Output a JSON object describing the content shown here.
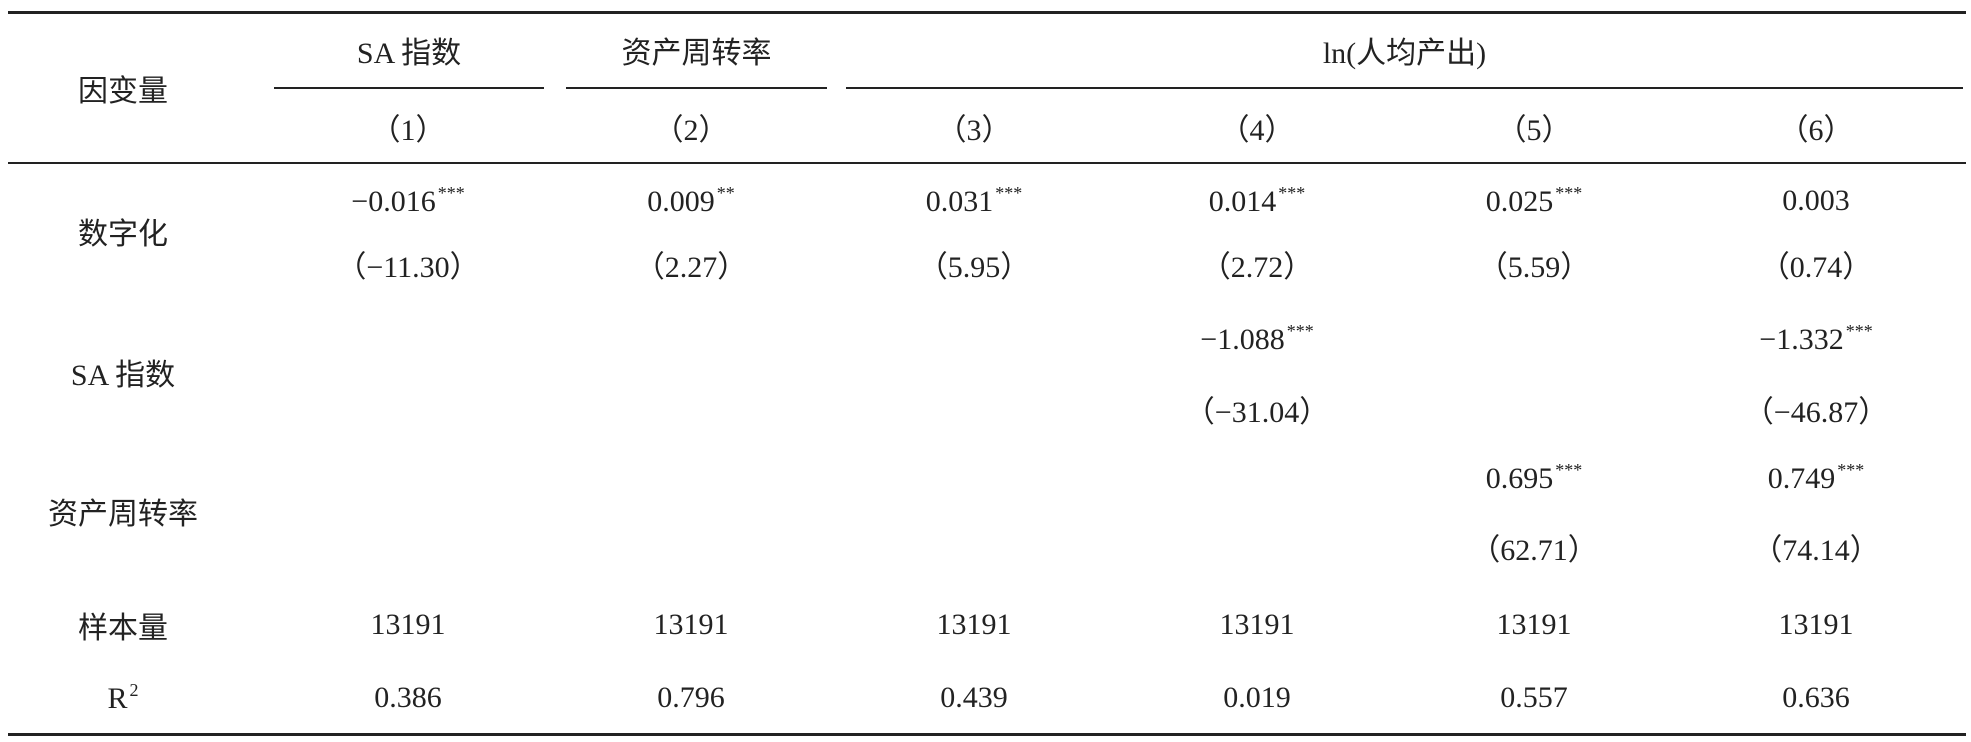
{
  "table": {
    "dep_var_label": "因变量",
    "groups": [
      "SA 指数",
      "资产周转率",
      "ln(人均产出)"
    ],
    "columns": [
      "（1）",
      "（2）",
      "（3）",
      "（4）",
      "（5）",
      "（6）"
    ],
    "rows": [
      {
        "label": "数字化",
        "cells": [
          {
            "coef": "−0.016",
            "stars": "***",
            "t": "（−11.30）"
          },
          {
            "coef": "0.009",
            "stars": "**",
            "t": "（2.27）"
          },
          {
            "coef": "0.031",
            "stars": "***",
            "t": "（5.95）"
          },
          {
            "coef": "0.014",
            "stars": "***",
            "t": "（2.72）"
          },
          {
            "coef": "0.025",
            "stars": "***",
            "t": "（5.59）"
          },
          {
            "coef": "0.003",
            "t": "（0.74）"
          }
        ]
      },
      {
        "label": "SA 指数",
        "cells": [
          null,
          null,
          null,
          {
            "coef": "−1.088",
            "stars": "***",
            "t": "（−31.04）"
          },
          null,
          {
            "coef": "−1.332",
            "stars": "***",
            "t": "（−46.87）"
          }
        ]
      },
      {
        "label": "资产周转率",
        "cells": [
          null,
          null,
          null,
          null,
          {
            "coef": "0.695",
            "stars": "***",
            "t": "（62.71）"
          },
          {
            "coef": "0.749",
            "stars": "***",
            "t": "（74.14）"
          }
        ]
      }
    ],
    "summary": [
      {
        "label": "样本量",
        "values": [
          "13191",
          "13191",
          "13191",
          "13191",
          "13191",
          "13191"
        ]
      },
      {
        "label": {
          "base": "R",
          "sup": "2"
        },
        "values": [
          "0.386",
          "0.796",
          "0.439",
          "0.019",
          "0.557",
          "0.636"
        ]
      }
    ]
  }
}
